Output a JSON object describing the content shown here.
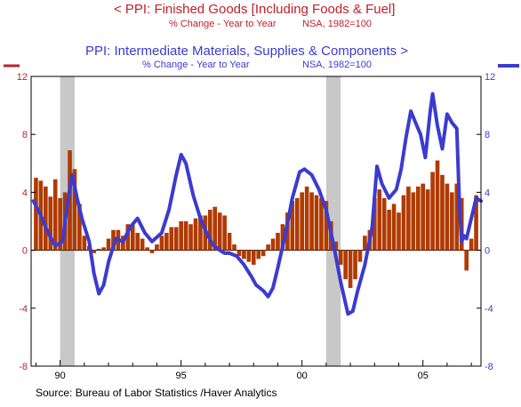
{
  "header": {
    "title1": "<  PPI: Finished Goods [Including Foods & Fuel]",
    "subtitle1_left": "% Change - Year to Year",
    "subtitle1_right": "NSA, 1982=100",
    "title2": "PPI: Intermediate Materials, Supplies & Components  >",
    "subtitle2_left": "% Change - Year to Year",
    "subtitle2_right": "NSA, 1982=100"
  },
  "source": "Source:  Bureau of Labor Statistics /Haver Analytics",
  "colors": {
    "finished_goods": "#b03a00",
    "intermediate": "#3b3bd0",
    "title_red": "#c0202a",
    "recession": "#c8c8c8"
  },
  "chart_data": {
    "type": "bar",
    "ylim": [
      -8,
      12
    ],
    "y_ticks_left": [
      "12",
      "8",
      "4",
      "0",
      "-4",
      "-8"
    ],
    "y_ticks_right": [
      "12",
      "8",
      "4",
      "0",
      "-4",
      "-8"
    ],
    "x_tick_labels": [
      {
        "x": 1990,
        "label": "90"
      },
      {
        "x": 1995,
        "label": "95"
      },
      {
        "x": 2000,
        "label": "00"
      },
      {
        "x": 2005,
        "label": "05"
      }
    ],
    "xlim": [
      1988.8,
      2007.4
    ],
    "grid": false,
    "recessions": [
      [
        1990.0,
        1990.6
      ],
      [
        2001.0,
        2001.6
      ]
    ],
    "series": [
      {
        "name": "PPI: Finished Goods [Including Foods & Fuel]",
        "type": "bar",
        "axis": "left",
        "points": [
          [
            1989.0,
            5.0
          ],
          [
            1989.2,
            4.8
          ],
          [
            1989.4,
            4.4
          ],
          [
            1989.6,
            3.7
          ],
          [
            1989.8,
            4.9
          ],
          [
            1990.0,
            3.6
          ],
          [
            1990.2,
            4.0
          ],
          [
            1990.4,
            6.9
          ],
          [
            1990.6,
            5.6
          ],
          [
            1990.8,
            3.2
          ],
          [
            1991.0,
            1.0
          ],
          [
            1991.2,
            0.3
          ],
          [
            1991.4,
            -0.2
          ],
          [
            1991.6,
            0.1
          ],
          [
            1991.8,
            0.2
          ],
          [
            1992.0,
            0.8
          ],
          [
            1992.2,
            1.4
          ],
          [
            1992.4,
            1.4
          ],
          [
            1992.6,
            1.0
          ],
          [
            1992.8,
            1.8
          ],
          [
            1993.0,
            1.8
          ],
          [
            1993.2,
            1.2
          ],
          [
            1993.4,
            0.8
          ],
          [
            1993.6,
            0.2
          ],
          [
            1993.8,
            -0.2
          ],
          [
            1994.0,
            0.4
          ],
          [
            1994.2,
            1.0
          ],
          [
            1994.4,
            1.2
          ],
          [
            1994.6,
            1.6
          ],
          [
            1994.8,
            1.6
          ],
          [
            1995.0,
            2.0
          ],
          [
            1995.2,
            2.0
          ],
          [
            1995.4,
            1.8
          ],
          [
            1995.6,
            2.2
          ],
          [
            1995.8,
            2.4
          ],
          [
            1996.0,
            2.4
          ],
          [
            1996.2,
            2.8
          ],
          [
            1996.4,
            3.0
          ],
          [
            1996.6,
            2.6
          ],
          [
            1996.8,
            2.4
          ],
          [
            1997.0,
            1.2
          ],
          [
            1997.2,
            0.4
          ],
          [
            1997.4,
            -0.4
          ],
          [
            1997.6,
            -0.6
          ],
          [
            1997.8,
            -0.8
          ],
          [
            1998.0,
            -1.0
          ],
          [
            1998.2,
            -0.6
          ],
          [
            1998.4,
            -0.4
          ],
          [
            1998.6,
            0.4
          ],
          [
            1998.8,
            0.8
          ],
          [
            1999.0,
            1.2
          ],
          [
            1999.2,
            1.8
          ],
          [
            1999.4,
            2.6
          ],
          [
            1999.6,
            3.4
          ],
          [
            1999.8,
            3.6
          ],
          [
            2000.0,
            4.0
          ],
          [
            2000.2,
            4.4
          ],
          [
            2000.4,
            4.0
          ],
          [
            2000.6,
            3.8
          ],
          [
            2000.8,
            3.6
          ],
          [
            2001.0,
            3.4
          ],
          [
            2001.2,
            2.0
          ],
          [
            2001.4,
            0.6
          ],
          [
            2001.6,
            -1.0
          ],
          [
            2001.8,
            -2.0
          ],
          [
            2002.0,
            -2.6
          ],
          [
            2002.2,
            -2.0
          ],
          [
            2002.4,
            -0.8
          ],
          [
            2002.6,
            1.0
          ],
          [
            2002.8,
            1.4
          ],
          [
            2003.0,
            3.6
          ],
          [
            2003.2,
            4.2
          ],
          [
            2003.4,
            3.6
          ],
          [
            2003.6,
            2.8
          ],
          [
            2003.8,
            3.2
          ],
          [
            2004.0,
            2.6
          ],
          [
            2004.2,
            3.8
          ],
          [
            2004.4,
            4.4
          ],
          [
            2004.6,
            4.0
          ],
          [
            2004.8,
            4.4
          ],
          [
            2005.0,
            4.6
          ],
          [
            2005.2,
            4.2
          ],
          [
            2005.4,
            5.4
          ],
          [
            2005.6,
            6.2
          ],
          [
            2005.8,
            5.2
          ],
          [
            2006.0,
            4.6
          ],
          [
            2006.2,
            4.0
          ],
          [
            2006.4,
            4.6
          ],
          [
            2006.6,
            3.6
          ],
          [
            2006.8,
            -1.4
          ],
          [
            2007.0,
            0.8
          ],
          [
            2007.2,
            3.8
          ]
        ]
      },
      {
        "name": "PPI: Intermediate Materials, Supplies & Components",
        "type": "line",
        "axis": "right",
        "points": [
          [
            1988.9,
            3.4
          ],
          [
            1989.2,
            2.4
          ],
          [
            1989.5,
            1.2
          ],
          [
            1989.8,
            0.3
          ],
          [
            1990.1,
            0.6
          ],
          [
            1990.3,
            3.2
          ],
          [
            1990.5,
            5.2
          ],
          [
            1990.7,
            3.6
          ],
          [
            1990.9,
            2.2
          ],
          [
            1991.2,
            0.6
          ],
          [
            1991.4,
            -1.6
          ],
          [
            1991.6,
            -3.0
          ],
          [
            1991.8,
            -2.4
          ],
          [
            1992.0,
            -0.8
          ],
          [
            1992.3,
            0.8
          ],
          [
            1992.6,
            0.6
          ],
          [
            1992.9,
            1.6
          ],
          [
            1993.2,
            2.2
          ],
          [
            1993.5,
            1.2
          ],
          [
            1993.8,
            0.6
          ],
          [
            1994.2,
            1.2
          ],
          [
            1994.5,
            2.8
          ],
          [
            1994.8,
            5.2
          ],
          [
            1995.0,
            6.6
          ],
          [
            1995.2,
            6.0
          ],
          [
            1995.5,
            3.8
          ],
          [
            1995.8,
            2.2
          ],
          [
            1996.0,
            1.4
          ],
          [
            1996.3,
            0.4
          ],
          [
            1996.6,
            0.0
          ],
          [
            1996.8,
            -0.2
          ],
          [
            1997.0,
            -0.2
          ],
          [
            1997.3,
            -0.4
          ],
          [
            1997.6,
            -1.0
          ],
          [
            1997.9,
            -1.8
          ],
          [
            1998.1,
            -2.4
          ],
          [
            1998.4,
            -2.8
          ],
          [
            1998.6,
            -3.2
          ],
          [
            1998.8,
            -2.6
          ],
          [
            1999.0,
            -1.2
          ],
          [
            1999.3,
            1.0
          ],
          [
            1999.6,
            3.6
          ],
          [
            1999.9,
            5.4
          ],
          [
            2000.1,
            5.6
          ],
          [
            2000.4,
            5.2
          ],
          [
            2000.7,
            4.2
          ],
          [
            2001.0,
            2.8
          ],
          [
            2001.3,
            0.4
          ],
          [
            2001.6,
            -2.2
          ],
          [
            2001.9,
            -4.4
          ],
          [
            2002.1,
            -4.2
          ],
          [
            2002.3,
            -2.8
          ],
          [
            2002.6,
            -1.0
          ],
          [
            2002.9,
            1.6
          ],
          [
            2003.1,
            5.8
          ],
          [
            2003.3,
            4.6
          ],
          [
            2003.6,
            3.6
          ],
          [
            2003.9,
            4.2
          ],
          [
            2004.1,
            5.6
          ],
          [
            2004.3,
            7.8
          ],
          [
            2004.5,
            9.6
          ],
          [
            2004.7,
            8.8
          ],
          [
            2004.9,
            8.0
          ],
          [
            2005.1,
            6.4
          ],
          [
            2005.3,
            9.6
          ],
          [
            2005.4,
            10.8
          ],
          [
            2005.6,
            8.6
          ],
          [
            2005.8,
            7.0
          ],
          [
            2006.0,
            9.4
          ],
          [
            2006.2,
            8.8
          ],
          [
            2006.4,
            8.4
          ],
          [
            2006.5,
            3.6
          ],
          [
            2006.6,
            0.6
          ],
          [
            2006.7,
            1.0
          ],
          [
            2006.8,
            0.8
          ],
          [
            2007.0,
            2.2
          ],
          [
            2007.2,
            3.6
          ],
          [
            2007.4,
            3.4
          ]
        ]
      }
    ]
  }
}
